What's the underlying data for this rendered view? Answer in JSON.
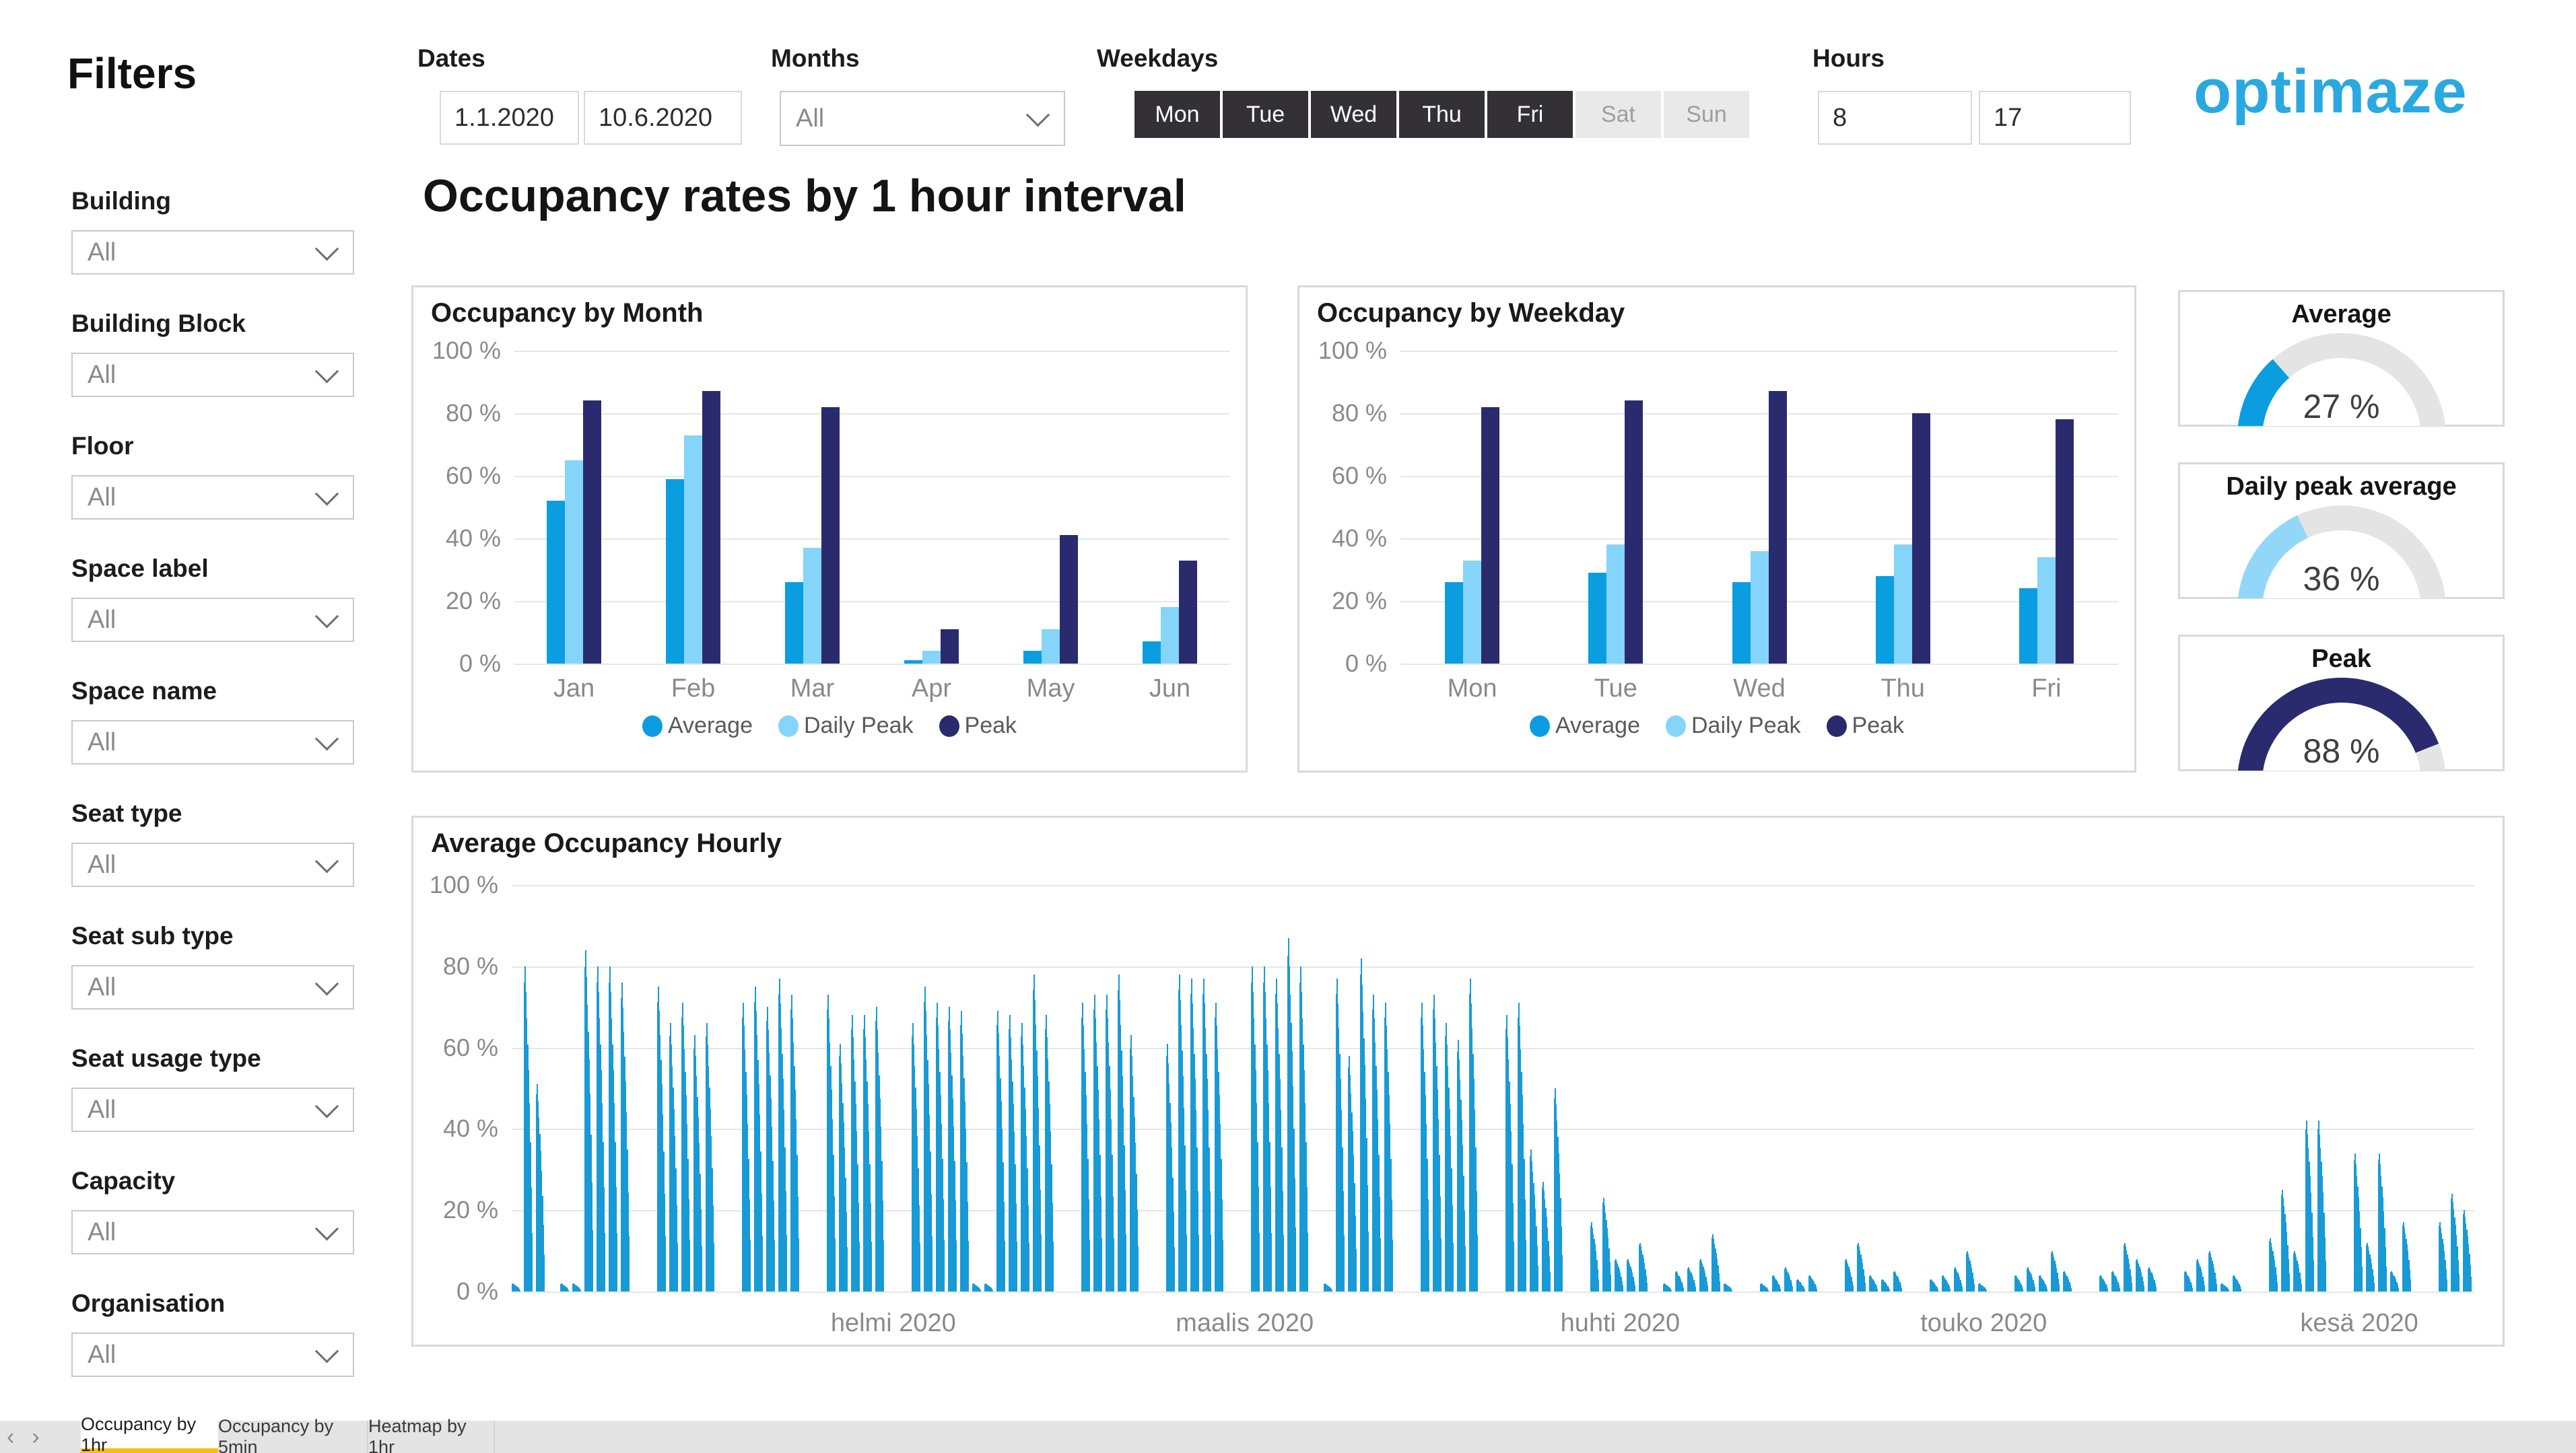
{
  "sidebar": {
    "title": "Filters",
    "filters": [
      {
        "label": "Building",
        "value": "All"
      },
      {
        "label": "Building Block",
        "value": "All"
      },
      {
        "label": "Floor",
        "value": "All"
      },
      {
        "label": "Space label",
        "value": "All"
      },
      {
        "label": "Space name",
        "value": "All"
      },
      {
        "label": "Seat type",
        "value": "All"
      },
      {
        "label": "Seat sub type",
        "value": "All"
      },
      {
        "label": "Seat usage type",
        "value": "All"
      },
      {
        "label": "Capacity",
        "value": "All"
      },
      {
        "label": "Organisation",
        "value": "All"
      }
    ]
  },
  "topbar": {
    "dates": {
      "label": "Dates",
      "from": "1.1.2020",
      "to": "10.6.2020"
    },
    "months": {
      "label": "Months",
      "value": "All"
    },
    "weekdays": {
      "label": "Weekdays",
      "days": [
        {
          "label": "Mon",
          "selected": true
        },
        {
          "label": "Tue",
          "selected": true
        },
        {
          "label": "Wed",
          "selected": true
        },
        {
          "label": "Thu",
          "selected": true
        },
        {
          "label": "Fri",
          "selected": true
        },
        {
          "label": "Sat",
          "selected": false
        },
        {
          "label": "Sun",
          "selected": false
        }
      ]
    },
    "hours": {
      "label": "Hours",
      "from": "8",
      "to": "17"
    },
    "logo_text": "optimaze"
  },
  "main": {
    "title": "Occupancy rates by 1 hour interval"
  },
  "colors": {
    "average_blue": "#0a9ee0",
    "daily_peak_light_blue": "#85d4fa",
    "peak_navy": "#2a2b6e",
    "hourly_bar_blue": "#189ad6",
    "logo_cyan": "#2aa9e0",
    "gauge_track_gray": "#e4e4e4",
    "active_tab_underline_yellow": "#f2c30f",
    "weekday_selected_bg": "#333135"
  },
  "gauges": [
    {
      "title": "Average",
      "value": 27,
      "display": "27 %",
      "color": "#0a9ee0"
    },
    {
      "title": "Daily peak average",
      "value": 36,
      "display": "36 %",
      "color": "#93d7f8"
    },
    {
      "title": "Peak",
      "value": 88,
      "display": "88 %",
      "color": "#2a2b6e"
    }
  ],
  "tabbar": {
    "prev": "‹",
    "next": "›",
    "tabs": [
      {
        "label": "Occupancy by 1hr",
        "active": true
      },
      {
        "label": "Occupancy by 5min",
        "active": false
      },
      {
        "label": "Heatmap by 1hr",
        "active": false
      }
    ]
  },
  "chart_data": [
    {
      "id": "month",
      "type": "bar",
      "title": "Occupancy by Month",
      "categories": [
        "Jan",
        "Feb",
        "Mar",
        "Apr",
        "May",
        "Jun"
      ],
      "series": [
        {
          "name": "Average",
          "color": "#0a9ee0",
          "values": [
            52,
            59,
            26,
            1,
            4,
            7
          ]
        },
        {
          "name": "Daily Peak",
          "color": "#85d4fa",
          "values": [
            65,
            73,
            37,
            4,
            11,
            18
          ]
        },
        {
          "name": "Peak",
          "color": "#2a2b6e",
          "values": [
            84,
            87,
            82,
            11,
            41,
            33
          ]
        }
      ],
      "ylim": [
        0,
        100
      ],
      "ytick_labels": [
        "100 %",
        "80 %",
        "60 %",
        "40 %",
        "20 %",
        "0 %"
      ],
      "grid": true,
      "legend_position": "bottom"
    },
    {
      "id": "weekday",
      "type": "bar",
      "title": "Occupancy by Weekday",
      "categories": [
        "Mon",
        "Tue",
        "Wed",
        "Thu",
        "Fri"
      ],
      "series": [
        {
          "name": "Average",
          "color": "#0a9ee0",
          "values": [
            26,
            29,
            26,
            28,
            24
          ]
        },
        {
          "name": "Daily Peak",
          "color": "#85d4fa",
          "values": [
            33,
            38,
            36,
            38,
            34
          ]
        },
        {
          "name": "Peak",
          "color": "#2a2b6e",
          "values": [
            82,
            84,
            87,
            80,
            78
          ]
        }
      ],
      "ylim": [
        0,
        100
      ],
      "ytick_labels": [
        "100 %",
        "80 %",
        "60 %",
        "40 %",
        "20 %",
        "0 %"
      ],
      "grid": true,
      "legend_position": "bottom"
    },
    {
      "id": "hourly",
      "type": "bar",
      "title": "Average Occupancy Hourly",
      "ylim": [
        0,
        100
      ],
      "ytick_labels": [
        "100 %",
        "80 %",
        "60 %",
        "40 %",
        "20 %",
        "0 %"
      ],
      "grid": true,
      "bar_color": "#189ad6",
      "x_unit": "day (1.1.2020 - 10.6.2020), ten 1-hour bars per day 8-17, weekends near zero",
      "intraday_profile": [
        0.95,
        1,
        0.92,
        0.84,
        0.76,
        0.68,
        0.58,
        0.46,
        0.32,
        0.18
      ],
      "daily_peak_values": [
        2,
        80,
        51,
        0,
        2,
        2,
        84,
        80,
        80,
        76,
        0,
        0,
        75,
        66,
        71,
        63,
        66,
        0,
        0,
        71,
        75,
        70,
        77,
        73,
        0,
        0,
        73,
        61,
        68,
        68,
        70,
        0,
        0,
        66,
        75,
        71,
        70,
        69,
        2,
        2,
        69,
        68,
        66,
        78,
        68,
        0,
        0,
        71,
        73,
        73,
        78,
        63,
        0,
        0,
        61,
        78,
        77,
        77,
        71,
        0,
        0,
        80,
        80,
        77,
        87,
        80,
        0,
        2,
        77,
        58,
        82,
        73,
        71,
        0,
        0,
        71,
        73,
        66,
        62,
        77,
        0,
        0,
        68,
        71,
        35,
        27,
        50,
        0,
        0,
        17,
        23,
        8,
        8,
        12,
        0,
        2,
        5,
        6,
        8,
        14,
        2,
        0,
        0,
        2,
        4,
        6,
        3,
        4,
        0,
        0,
        8,
        12,
        4,
        3,
        5,
        0,
        0,
        3,
        4,
        6,
        10,
        2,
        0,
        0,
        4,
        6,
        4,
        10,
        5,
        0,
        0,
        4,
        5,
        12,
        8,
        6,
        0,
        0,
        5,
        8,
        10,
        2,
        4,
        0,
        0,
        13,
        25,
        10,
        42,
        42,
        0,
        0,
        34,
        12,
        34,
        5,
        17,
        0,
        0,
        17,
        24,
        20
      ],
      "month_ticks": [
        {
          "label": "helmi 2020",
          "day_index": 31
        },
        {
          "label": "maalis 2020",
          "day_index": 60
        },
        {
          "label": "huhti 2020",
          "day_index": 91
        },
        {
          "label": "touko 2020",
          "day_index": 121
        },
        {
          "label": "kesä 2020",
          "day_index": 152
        }
      ]
    }
  ]
}
